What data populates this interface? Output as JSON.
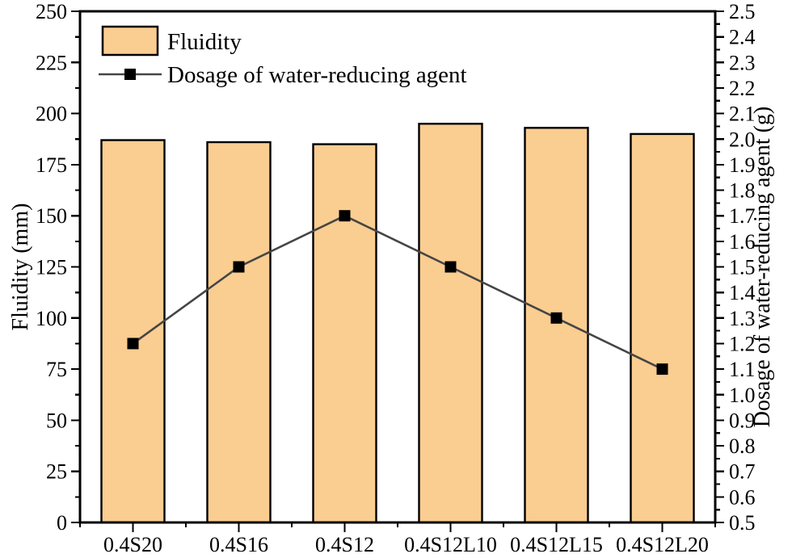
{
  "chart_data": {
    "type": "bar",
    "subtype": "dual-axis-bar-and-line",
    "categories": [
      "0.4S20",
      "0.4S16",
      "0.4S12",
      "0.4S12L10",
      "0.4S12L15",
      "0.4S12L20"
    ],
    "series": [
      {
        "name": "Fluidity",
        "type": "bar",
        "axis": "left",
        "values": [
          187,
          186,
          185,
          195,
          193,
          190
        ]
      },
      {
        "name": "Dosage of water-reducing agent",
        "type": "line",
        "axis": "right",
        "marker": "filled-square",
        "values": [
          1.2,
          1.5,
          1.7,
          1.5,
          1.3,
          1.1
        ]
      }
    ],
    "left_axis": {
      "label": "Fluidity (mm)",
      "min": 0,
      "max": 250,
      "major_step": 25,
      "minor_step": 12.5
    },
    "right_axis": {
      "label": "Dosage of water-reducing agent (g)",
      "min": 0.5,
      "max": 2.5,
      "major_step": 0.1,
      "minor_step": 0.05
    },
    "legend": {
      "position": "top-left-inside",
      "items": [
        "Fluidity",
        "Dosage of water-reducing agent"
      ]
    },
    "grid": "off",
    "colors": {
      "bar_fill": "#FACD91",
      "bar_edge": "#000000",
      "line": "#454545",
      "marker": "#000000",
      "axis": "#000000",
      "text": "#000000",
      "background": "#FFFFFF"
    }
  }
}
